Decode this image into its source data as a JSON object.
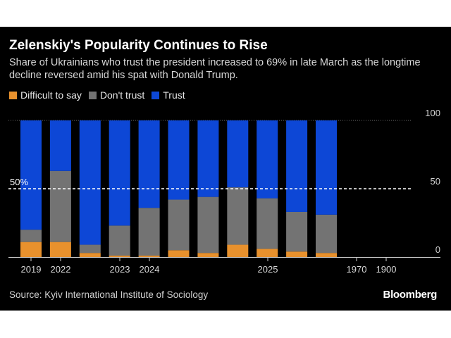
{
  "header": {
    "title": "Zelenskiy's Popularity Continues to Rise",
    "subtitle": "Share of Ukrainians who trust the president increased to 69% in late March as the longtime decline reversed amid his spat with Donald Trump."
  },
  "legend": [
    {
      "label": "Difficult to say",
      "color": "#e8912d"
    },
    {
      "label": "Don't trust",
      "color": "#737373"
    },
    {
      "label": "Trust",
      "color": "#0d47d6"
    }
  ],
  "reference_label": "50%",
  "footer": {
    "source": "Source: Kyiv International Institute of Sociology",
    "brand": "Bloomberg"
  },
  "chart_data": {
    "type": "bar",
    "stacked": true,
    "ylim": [
      0,
      100
    ],
    "yticks": [
      0,
      50,
      100
    ],
    "reference_line": 50,
    "x_tick_labels": [
      "2019",
      "2022",
      "2023",
      "2024",
      "2025",
      "1970",
      "1900"
    ],
    "series": [
      {
        "name": "Difficult to say",
        "color": "#e8912d",
        "values": [
          11,
          11,
          3,
          1,
          1,
          5,
          3,
          9,
          6,
          4,
          3
        ]
      },
      {
        "name": "Don't trust",
        "color": "#737373",
        "values": [
          9,
          52,
          6,
          22,
          35,
          37,
          41,
          42,
          37,
          29,
          28
        ]
      },
      {
        "name": "Trust",
        "color": "#0d47d6",
        "values": [
          80,
          37,
          91,
          77,
          64,
          58,
          56,
          49,
          57,
          67,
          69
        ]
      }
    ]
  }
}
